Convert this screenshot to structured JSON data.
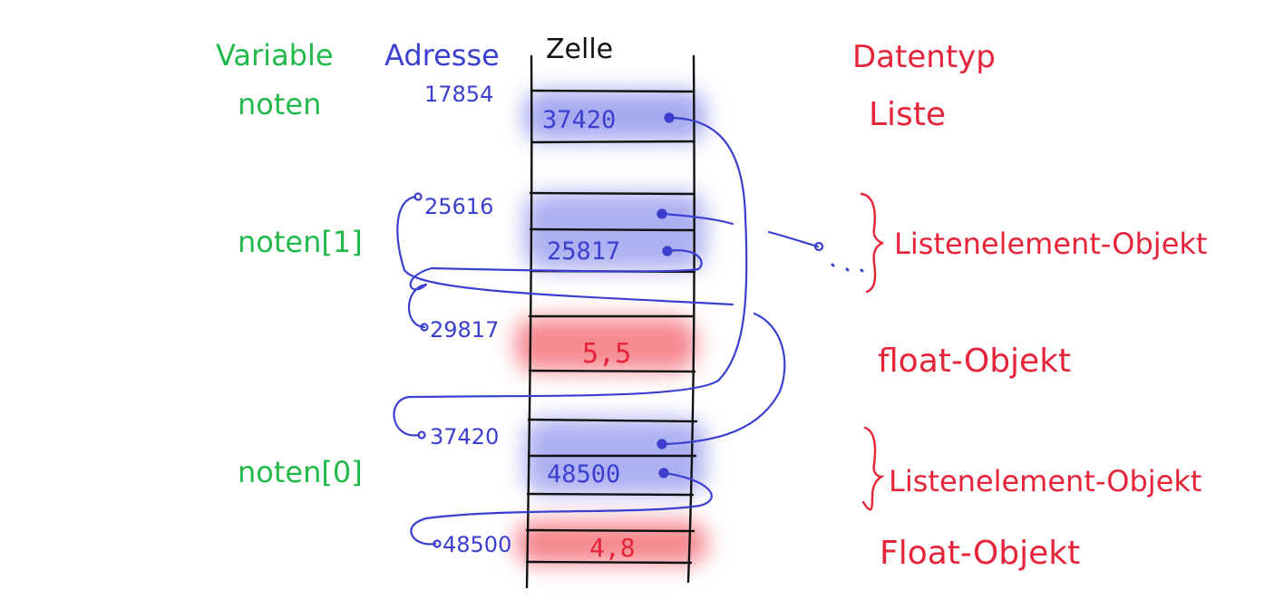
{
  "headers": {
    "variable": "Variable",
    "adresse": "Adresse",
    "zelle": "Zelle",
    "datentyp": "Datentyp"
  },
  "variables": {
    "noten": "noten",
    "noten_1": "noten[1]",
    "noten_0": "noten[0]"
  },
  "addresses": {
    "a17854": "17854",
    "a25616": "25616",
    "a29817": "29817",
    "a37420": "37420",
    "a48500": "48500"
  },
  "cells": {
    "c1": "37420",
    "c3": "25817",
    "c4": "5,5",
    "c6": "48500",
    "c7": "4,8"
  },
  "types": {
    "liste": "Liste",
    "listenelement_1": "Listenelement-Objekt",
    "float_1": "float-Objekt",
    "listenelement_2": "Listenelement-Objekt",
    "float_2": "Float-Objekt"
  },
  "colors": {
    "variable": "#22b84a",
    "address": "#3b3fcf",
    "type": "#e5243a",
    "highlight_blue": "#5a5fe0",
    "highlight_red": "#f03c46"
  }
}
